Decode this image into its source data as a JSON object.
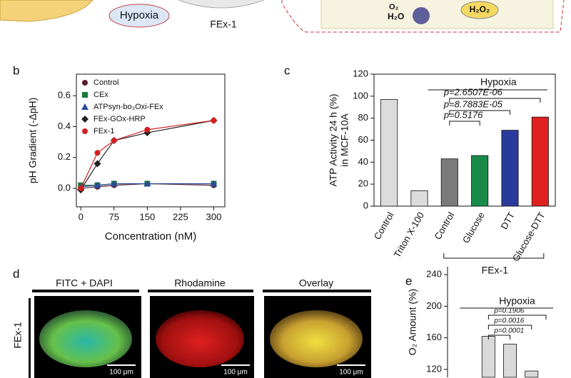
{
  "figure": {
    "top": {
      "hypoxia": "Hypoxia",
      "fex": "FEx-1",
      "o2": "O₂",
      "h2o": "H₂O",
      "h2o2": "H₂O₂"
    },
    "panel_labels": [
      "b",
      "c",
      "d",
      "e"
    ],
    "panel_d": {
      "columns": [
        "FITC + DAPI",
        "Rhodamine",
        "Overlay"
      ],
      "row_label": "FEx-1",
      "scale_bar": "100 μm"
    }
  },
  "chart_data": [
    {
      "type": "line",
      "xlabel": "Concentration (nM)",
      "ylabel": "pH Gradient (-ΔpH)",
      "x": [
        0,
        37.5,
        75,
        150,
        300
      ],
      "xlim": [
        -10,
        325
      ],
      "xticks": [
        0,
        75,
        150,
        225,
        300
      ],
      "ylim": [
        -0.12,
        0.74
      ],
      "yticks": [
        {
          "value": 0,
          "label": "0.0"
        },
        {
          "value": 0.2,
          "label": "0.2"
        },
        {
          "value": 0.4,
          "label": "0.4"
        },
        {
          "value": 0.6,
          "label": "0.6"
        }
      ],
      "series": [
        {
          "name": "Control",
          "color": "#5a1a2a",
          "marker": "circle",
          "values": [
            0.0,
            0.01,
            0.02,
            0.03,
            0.02
          ]
        },
        {
          "name": "CEx",
          "color": "#1a7a3a",
          "marker": "square",
          "values": [
            0.02,
            0.02,
            0.03,
            0.03,
            0.03
          ]
        },
        {
          "name": "ATPsyn-bo₃Oxi-FEx",
          "color": "#2a4a9a",
          "marker": "triangle",
          "values": [
            0.01,
            0.02,
            0.03,
            0.03,
            0.03
          ]
        },
        {
          "name": "FEx-GOx-HRP",
          "color": "#222222",
          "marker": "diamond",
          "values": [
            -0.01,
            0.16,
            0.31,
            0.36,
            0.44
          ]
        },
        {
          "name": "FEx-1",
          "color": "#d42020",
          "marker": "circle",
          "values": [
            0.0,
            0.23,
            0.31,
            0.38,
            0.44
          ]
        }
      ]
    },
    {
      "type": "bar",
      "ylabel": [
        "ATP Activity 24 h (%)",
        "in MCF-10A"
      ],
      "categories": [
        "Control",
        "Triton X-100",
        "Control",
        "Glucose",
        "DTT",
        "Glucose-DTT"
      ],
      "values": [
        97,
        14,
        43,
        46,
        69,
        81
      ],
      "colors": [
        "#dcdcdc",
        "#dcdcdc",
        "#7a7a7a",
        "#1a8a4a",
        "#2a3a9a",
        "#e02020"
      ],
      "ylim": [
        0,
        120
      ],
      "yticks": [
        0,
        20,
        40,
        60,
        80,
        100,
        120
      ],
      "group_label": "Hypoxia",
      "p_values": [
        "p=0.5176",
        "p=8.7883E-05",
        "p=2.6507E-06"
      ],
      "bracket_label": "FEx-1"
    },
    {
      "type": "bar",
      "ylabel": [
        "O₂ Amount (%)"
      ],
      "categories": [
        null,
        null,
        null
      ],
      "values": [
        162,
        152,
        118
      ],
      "colors": [
        "#d9d9d9",
        "#d9d9d9",
        "#d9d9d9"
      ],
      "ylim": [
        110,
        250
      ],
      "yticks": [
        120,
        160,
        200,
        240
      ],
      "group_label": "Hypoxia",
      "p_values": [
        "p=0.0001",
        "p=0.0016",
        "p=0.1906"
      ]
    }
  ]
}
